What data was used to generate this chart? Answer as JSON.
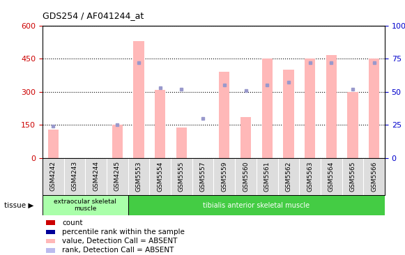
{
  "title": "GDS254 / AF041244_at",
  "samples": [
    "GSM4242",
    "GSM4243",
    "GSM4244",
    "GSM4245",
    "GSM5553",
    "GSM5554",
    "GSM5555",
    "GSM5557",
    "GSM5559",
    "GSM5560",
    "GSM5561",
    "GSM5562",
    "GSM5563",
    "GSM5564",
    "GSM5565",
    "GSM5566"
  ],
  "bar_values": [
    130,
    0,
    0,
    150,
    530,
    310,
    140,
    0,
    390,
    185,
    450,
    400,
    450,
    465,
    300,
    450
  ],
  "bar_color": "#FFB8B8",
  "dot_values": [
    24,
    null,
    null,
    25,
    72,
    53,
    52,
    30,
    55,
    51,
    55,
    57,
    72,
    72,
    52,
    72
  ],
  "dot_color": "#9999CC",
  "ylim_left": [
    0,
    600
  ],
  "ylim_right": [
    0,
    100
  ],
  "yticks_left": [
    0,
    150,
    300,
    450,
    600
  ],
  "yticks_right": [
    0,
    25,
    50,
    75,
    100
  ],
  "ylabel_left_color": "#CC0000",
  "ylabel_right_color": "#0000CC",
  "tissue_group1_label": "extraocular skeletal\nmuscle",
  "tissue_group1_color": "#AAFFAA",
  "tissue_group1_n": 4,
  "tissue_group2_label": "tibialis anterior skeletal muscle",
  "tissue_group2_color": "#44CC44",
  "tissue_group2_n": 12,
  "tissue_label": "tissue",
  "legend_items": [
    {
      "label": "count",
      "color": "#CC0000"
    },
    {
      "label": "percentile rank within the sample",
      "color": "#000099"
    },
    {
      "label": "value, Detection Call = ABSENT",
      "color": "#FFB8B8"
    },
    {
      "label": "rank, Detection Call = ABSENT",
      "color": "#BBBBEE"
    }
  ],
  "xtick_bg": "#DDDDDD"
}
